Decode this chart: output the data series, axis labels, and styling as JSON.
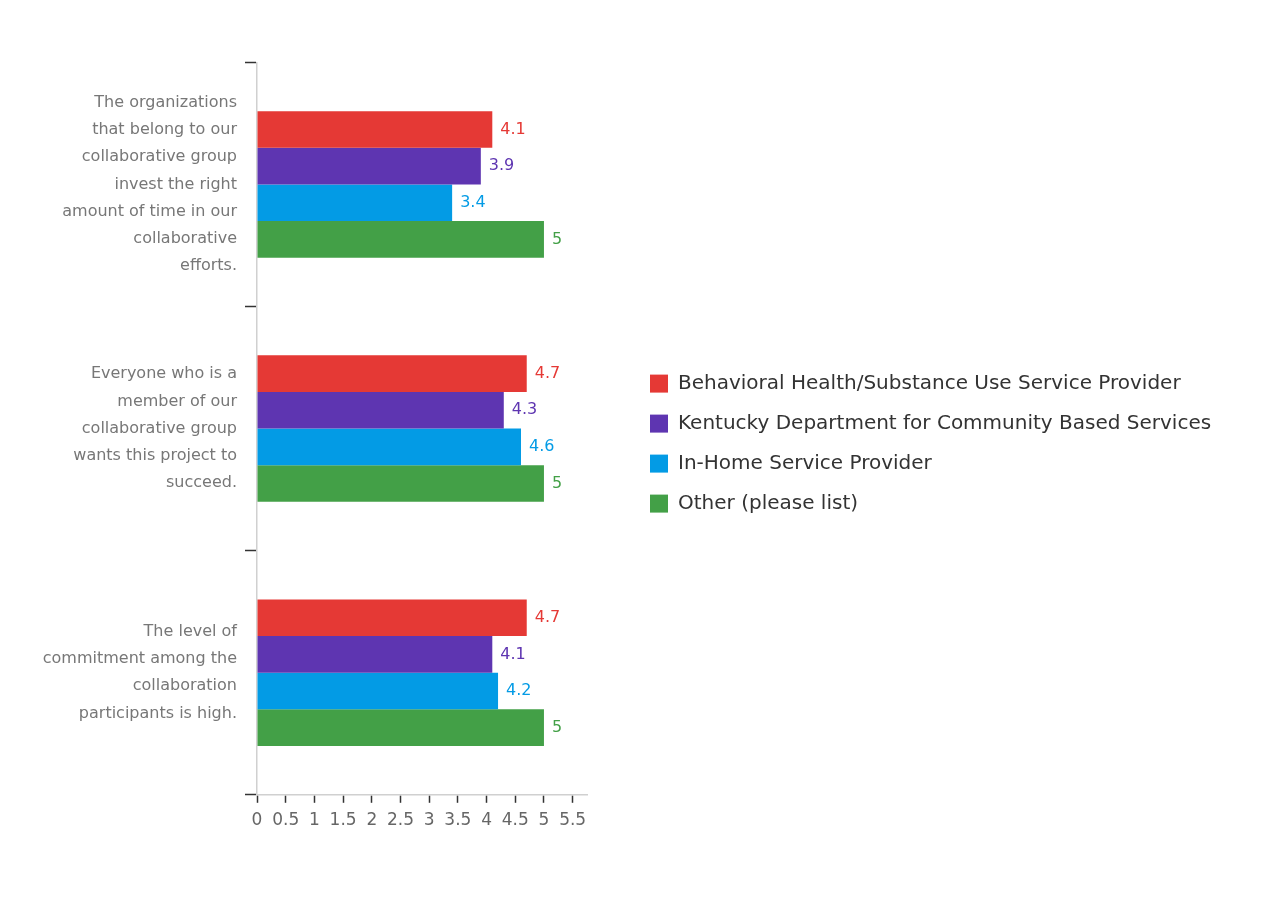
{
  "chart_data": {
    "type": "bar",
    "orientation": "horizontal",
    "categories": [
      "The organizations that belong to our collaborative group invest the right amount of time in our collaborative efforts.",
      "Everyone who is a member of our collaborative group wants this project to succeed.",
      "The level of commitment among the collaboration participants is high."
    ],
    "series": [
      {
        "name": "Behavioral Health/Substance Use Service Provider",
        "color": "#e53935",
        "values": [
          4.1,
          4.7,
          4.7
        ]
      },
      {
        "name": "Kentucky Department for Community Based Services",
        "color": "#5e35b1",
        "values": [
          3.9,
          4.3,
          4.1
        ]
      },
      {
        "name": "In-Home Service Provider",
        "color": "#039be5",
        "values": [
          3.4,
          4.6,
          4.2
        ]
      },
      {
        "name": "Other (please list)",
        "color": "#43a047",
        "values": [
          5,
          5,
          5
        ]
      }
    ],
    "xlim": [
      0,
      5.75
    ],
    "xticks": [
      0,
      0.5,
      1,
      1.5,
      2,
      2.5,
      3,
      3.5,
      4,
      4.5,
      5,
      5.5
    ],
    "data_labels": true,
    "legend": "right"
  }
}
